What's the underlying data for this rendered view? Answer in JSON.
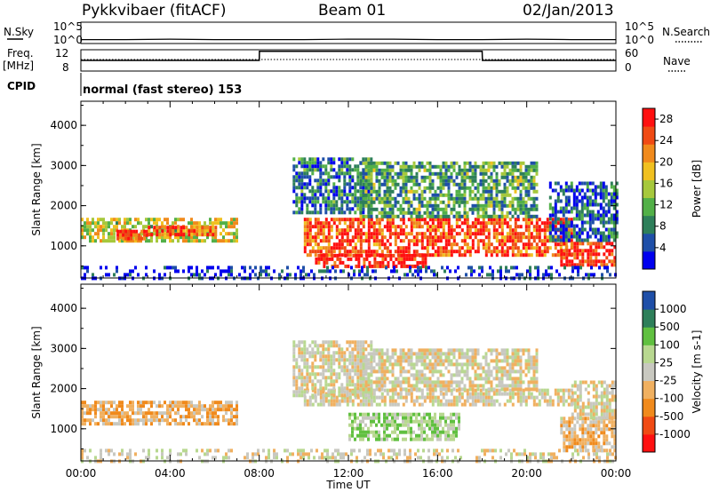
{
  "header": {
    "station": "Pykkvibaer (fitACF)",
    "beam": "Beam 01",
    "date": "02/Jan/2013"
  },
  "strip_labels": {
    "nsky": "N.Sky",
    "nsearch": "N.Search",
    "freq": "Freq.",
    "freq_unit": "[MHz]",
    "nave": "Nave",
    "cpid": "CPID",
    "cpid_text": "normal (fast stereo) 153",
    "noise_ticks_left": [
      "10^5",
      "10^0"
    ],
    "noise_ticks_right": [
      "10^5",
      "10^0"
    ],
    "freq_ticks": [
      "12",
      "8"
    ],
    "nave_ticks": [
      "60",
      "0"
    ]
  },
  "colors": {
    "noise_line": "#000000",
    "power_scale": [
      "#0000ee",
      "#1f4fa8",
      "#2e7f5a",
      "#52b048",
      "#a6c83c",
      "#f0c020",
      "#f08a1c",
      "#f04a14",
      "#ff1010"
    ],
    "velocity_scale": [
      "#ff1010",
      "#f04a14",
      "#f08a1c",
      "#f0b060",
      "#c8c8c0",
      "#b8d890",
      "#60c040",
      "#2e7f5a",
      "#1f4fa8"
    ]
  },
  "chart_data": [
    {
      "type": "line",
      "title": "N.Sky / N.Search noise",
      "x": [
        0,
        2,
        4,
        6,
        8,
        10,
        12,
        14,
        16,
        18,
        20,
        22,
        24
      ],
      "series": [
        {
          "name": "N.Sky",
          "values": [
            0.5,
            0.5,
            0.6,
            0.5,
            0.5,
            0.5,
            0.6,
            0.6,
            0.5,
            0.5,
            0.6,
            0.5,
            0.5
          ]
        }
      ],
      "ylim": [
        0,
        5
      ],
      "yticks": [
        "10^0",
        "10^5"
      ]
    },
    {
      "type": "line",
      "title": "Freq. / Nave",
      "x": [
        0,
        3,
        8,
        8.01,
        18,
        18.01,
        24
      ],
      "series": [
        {
          "name": "Freq.",
          "values": [
            10,
            10,
            10,
            11.7,
            11.7,
            10,
            10
          ]
        }
      ],
      "ylim": [
        8,
        12
      ],
      "yticks": [
        8,
        12
      ]
    },
    {
      "type": "heatmap",
      "parameter": "Power [dB]",
      "xlabel": "Time UT",
      "ylabel": "Slant Range [km]",
      "xlim": [
        0,
        24
      ],
      "ylim": [
        200,
        4600
      ],
      "xticks": [
        "00:00",
        "04:00",
        "08:00",
        "12:00",
        "16:00",
        "20:00",
        "00:00"
      ],
      "yticks": [
        1000,
        2000,
        3000,
        4000
      ],
      "colorbar": {
        "label": "Power [dB]",
        "ticks": [
          4,
          8,
          12,
          16,
          20,
          24,
          28
        ],
        "range": [
          0,
          30
        ]
      },
      "regions": [
        {
          "t0": 0.0,
          "t1": 7.0,
          "r0": 1100,
          "r1": 1700,
          "level": 0.55
        },
        {
          "t0": 1.6,
          "t1": 3.0,
          "r0": 1200,
          "r1": 1400,
          "level": 0.9
        },
        {
          "t0": 3.0,
          "t1": 6.0,
          "r0": 1300,
          "r1": 1500,
          "level": 0.85
        },
        {
          "t0": 10.0,
          "t1": 22.0,
          "r0": 800,
          "r1": 1700,
          "level": 0.85
        },
        {
          "t0": 10.5,
          "t1": 15.5,
          "r0": 500,
          "r1": 800,
          "level": 0.95
        },
        {
          "t0": 9.5,
          "t1": 13.0,
          "r0": 1800,
          "r1": 3200,
          "level": 0.25
        },
        {
          "t0": 12.5,
          "t1": 20.5,
          "r0": 1700,
          "r1": 3100,
          "level": 0.35
        },
        {
          "t0": 21.5,
          "t1": 24.0,
          "r0": 500,
          "r1": 1100,
          "level": 0.9
        },
        {
          "t0": 21.0,
          "t1": 24.0,
          "r0": 1100,
          "r1": 2600,
          "level": 0.2
        },
        {
          "t0": 0.0,
          "t1": 24.0,
          "r0": 200,
          "r1": 500,
          "level": 0.1
        }
      ]
    },
    {
      "type": "heatmap",
      "parameter": "Velocity [m s-1]",
      "xlabel": "Time UT",
      "ylabel": "Slant Range [km]",
      "xlim": [
        0,
        24
      ],
      "ylim": [
        200,
        4600
      ],
      "xticks": [
        "00:00",
        "04:00",
        "08:00",
        "12:00",
        "16:00",
        "20:00",
        "00:00"
      ],
      "yticks": [
        1000,
        2000,
        3000,
        4000
      ],
      "colorbar": {
        "label": "Velocity [m s-1]",
        "ticks": [
          -1000,
          -500,
          -100,
          -25,
          25,
          100,
          500,
          1000
        ],
        "range": [
          -1200,
          1200
        ]
      },
      "regions": [
        {
          "t0": 0.0,
          "t1": 7.0,
          "r0": 1100,
          "r1": 1700,
          "value": -300
        },
        {
          "t0": 10.0,
          "t1": 22.0,
          "r0": 1600,
          "r1": 2000,
          "value": 0
        },
        {
          "t0": 12.0,
          "t1": 17.0,
          "r0": 700,
          "r1": 1400,
          "value": 300
        },
        {
          "t0": 9.5,
          "t1": 13.0,
          "r0": 1800,
          "r1": 3200,
          "value": 0
        },
        {
          "t0": 12.5,
          "t1": 20.5,
          "r0": 2000,
          "r1": 3000,
          "value": 0
        },
        {
          "t0": 21.5,
          "t1": 24.0,
          "r0": 500,
          "r1": 1300,
          "value": -200
        },
        {
          "t0": 22.0,
          "t1": 24.0,
          "r0": 1300,
          "r1": 2200,
          "value": 0
        },
        {
          "t0": 0.0,
          "t1": 24.0,
          "r0": 200,
          "r1": 500,
          "value": 0
        }
      ]
    }
  ]
}
